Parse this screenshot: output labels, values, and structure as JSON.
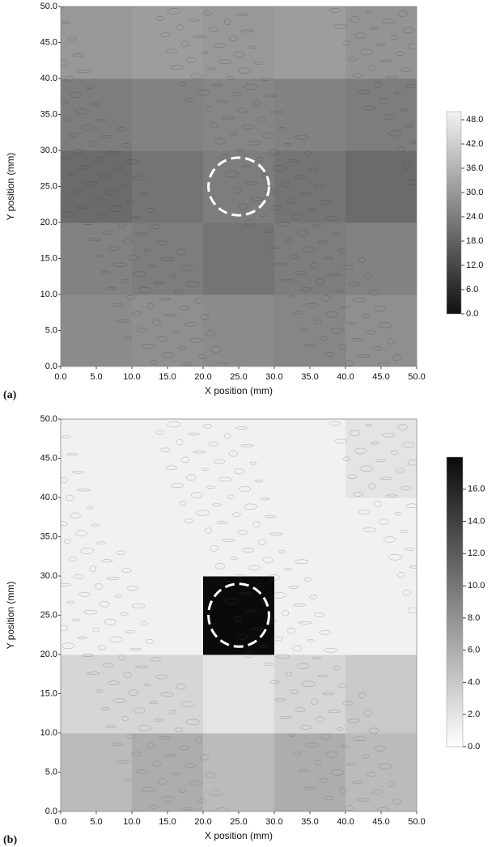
{
  "chart_data": [
    {
      "type": "heatmap",
      "panel_label": "(a)",
      "xlabel": "X position (mm)",
      "ylabel": "Y position (mm)",
      "x": [
        5,
        15,
        25,
        35,
        45
      ],
      "y": [
        5,
        15,
        25,
        35,
        45
      ],
      "z": [
        [
          27,
          28,
          27,
          26,
          28
        ],
        [
          25,
          24,
          22,
          24,
          25
        ],
        [
          20,
          22,
          24,
          22,
          20
        ],
        [
          24,
          25,
          26,
          25,
          24
        ],
        [
          30,
          31,
          30,
          31,
          29
        ]
      ],
      "xlim": [
        0,
        50
      ],
      "ylim": [
        0,
        50
      ],
      "xticks": [
        {
          "value": 0,
          "label": "0.0"
        },
        {
          "value": 5,
          "label": "5.0"
        },
        {
          "value": 10,
          "label": "10.0"
        },
        {
          "value": 15,
          "label": "15.0"
        },
        {
          "value": 20,
          "label": "20.0"
        },
        {
          "value": 25,
          "label": "25.0"
        },
        {
          "value": 30,
          "label": "30.0"
        },
        {
          "value": 35,
          "label": "35.0"
        },
        {
          "value": 40,
          "label": "40.0"
        },
        {
          "value": 45,
          "label": "45.0"
        },
        {
          "value": 50,
          "label": "50.0"
        }
      ],
      "yticks": [
        {
          "value": 0,
          "label": "0.0"
        },
        {
          "value": 5,
          "label": "5.0"
        },
        {
          "value": 10,
          "label": "10.0"
        },
        {
          "value": 15,
          "label": "15.0"
        },
        {
          "value": 20,
          "label": "20.0"
        },
        {
          "value": 25,
          "label": "25.0"
        },
        {
          "value": 30,
          "label": "30.0"
        },
        {
          "value": 35,
          "label": "35.0"
        },
        {
          "value": 40,
          "label": "40.0"
        },
        {
          "value": 45,
          "label": "45.0"
        },
        {
          "value": 50,
          "label": "50.0"
        }
      ],
      "zlim": [
        0,
        50
      ],
      "zticks": [
        {
          "value": 0,
          "label": "0.0"
        },
        {
          "value": 6,
          "label": "6.0"
        },
        {
          "value": 12,
          "label": "12.0"
        },
        {
          "value": 18,
          "label": "18.0"
        },
        {
          "value": 24,
          "label": "24.0"
        },
        {
          "value": 30,
          "label": "30.0"
        },
        {
          "value": 36,
          "label": "36.0"
        },
        {
          "value": 42,
          "label": "42.0"
        },
        {
          "value": 48,
          "label": "48.0"
        }
      ],
      "colors": [
        "#111111",
        "#f2f2f2"
      ]
    },
    {
      "type": "heatmap",
      "panel_label": "(b)",
      "xlabel": "X position (mm)",
      "ylabel": "Y position (mm)",
      "x": [
        5,
        15,
        25,
        35,
        45
      ],
      "y": [
        5,
        15,
        25,
        35,
        45
      ],
      "z": [
        [
          5,
          6,
          5,
          6,
          5
        ],
        [
          3,
          3,
          2,
          3,
          4
        ],
        [
          1,
          1,
          18,
          1,
          1
        ],
        [
          1,
          1,
          1,
          1,
          1
        ],
        [
          1,
          1,
          1,
          1,
          2
        ]
      ],
      "xlim": [
        0,
        50
      ],
      "ylim": [
        0,
        50
      ],
      "xticks": [
        {
          "value": 0,
          "label": "0.0"
        },
        {
          "value": 5,
          "label": "5.0"
        },
        {
          "value": 10,
          "label": "10.0"
        },
        {
          "value": 15,
          "label": "15.0"
        },
        {
          "value": 20,
          "label": "20.0"
        },
        {
          "value": 25,
          "label": "25.0"
        },
        {
          "value": 30,
          "label": "30.0"
        },
        {
          "value": 35,
          "label": "35.0"
        },
        {
          "value": 40,
          "label": "40.0"
        },
        {
          "value": 45,
          "label": "45.0"
        },
        {
          "value": 50,
          "label": "50.0"
        }
      ],
      "yticks": [
        {
          "value": 0,
          "label": "0.0"
        },
        {
          "value": 5,
          "label": "5.0"
        },
        {
          "value": 10,
          "label": "10.0"
        },
        {
          "value": 15,
          "label": "15.0"
        },
        {
          "value": 20,
          "label": "20.0"
        },
        {
          "value": 25,
          "label": "25.0"
        },
        {
          "value": 30,
          "label": "30.0"
        },
        {
          "value": 35,
          "label": "35.0"
        },
        {
          "value": 40,
          "label": "40.0"
        },
        {
          "value": 45,
          "label": "45.0"
        },
        {
          "value": 50,
          "label": "50.0"
        }
      ],
      "zlim": [
        0,
        18
      ],
      "zticks": [
        {
          "value": 0,
          "label": "0.0"
        },
        {
          "value": 2,
          "label": "2.0"
        },
        {
          "value": 4,
          "label": "4.0"
        },
        {
          "value": 6,
          "label": "6.0"
        },
        {
          "value": 8,
          "label": "8.0"
        },
        {
          "value": 10,
          "label": "10.0"
        },
        {
          "value": 12,
          "label": "12.0"
        },
        {
          "value": 14,
          "label": "14.0"
        },
        {
          "value": 16,
          "label": "16.0"
        }
      ],
      "colors": [
        "#ffffff",
        "#0a0a0a"
      ]
    }
  ]
}
